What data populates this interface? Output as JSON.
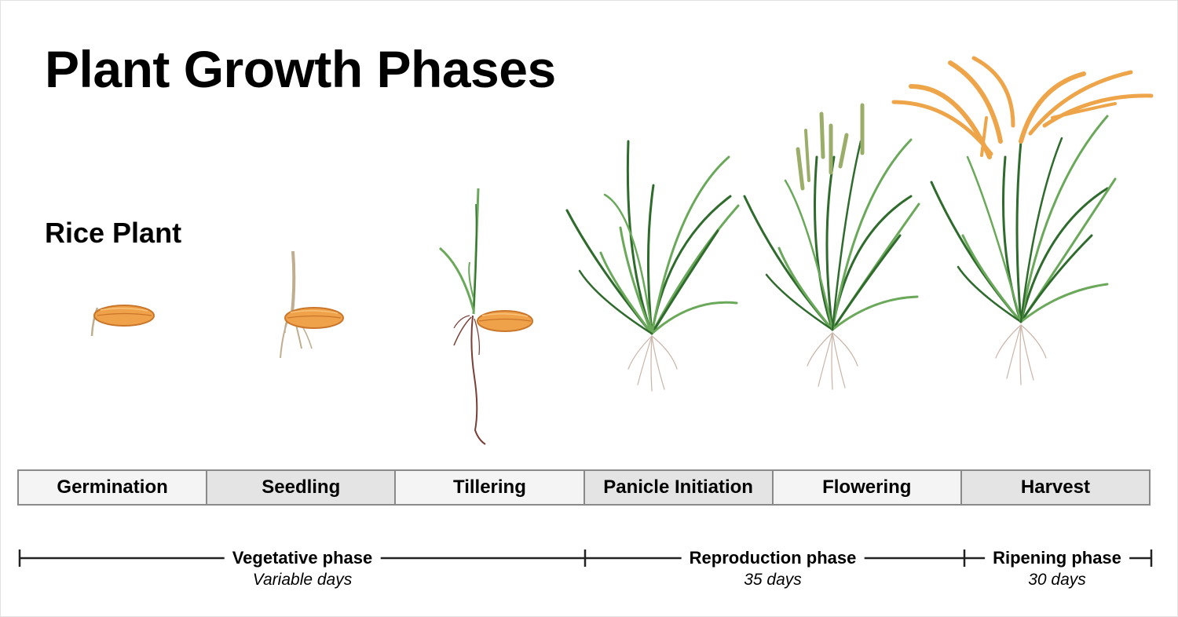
{
  "title": "Plant Growth Phases",
  "subtitle": "Rice Plant",
  "stages": [
    {
      "label": "Germination"
    },
    {
      "label": "Seedling"
    },
    {
      "label": "Tillering"
    },
    {
      "label": "Panicle Initiation"
    },
    {
      "label": "Flowering"
    },
    {
      "label": "Harvest"
    }
  ],
  "phases": [
    {
      "label": "Vegetative phase",
      "days": "Variable days",
      "from_stage": 1,
      "to_stage": 3
    },
    {
      "label": "Reproduction phase",
      "days": "35 days",
      "from_stage": 4,
      "to_stage": 5
    },
    {
      "label": "Ripening phase",
      "days": "30 days",
      "from_stage": 6,
      "to_stage": 6
    }
  ],
  "colors": {
    "seed": "#f0a24a",
    "seed_outline": "#c9762a",
    "leaf_dark": "#2e6b2c",
    "leaf_light": "#6aa85a",
    "panicle_flowering": "#9aae6a",
    "panicle_harvest": "#eea54a",
    "root_seedling": "#bfae90",
    "root_tillering": "#7a3e36",
    "root_mature": "#c9b4a8"
  }
}
